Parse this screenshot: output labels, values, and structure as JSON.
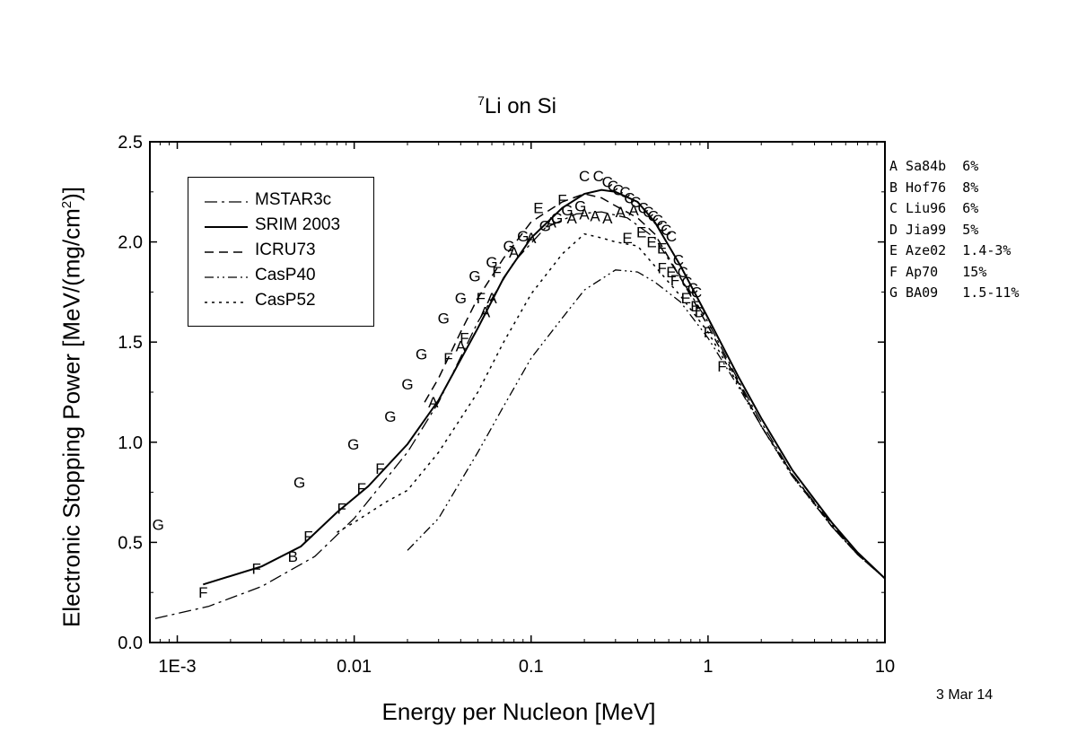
{
  "title": {
    "prefix": "7",
    "text": "Li on Si"
  },
  "xlabel": "Energy per Nucleon [MeV]",
  "ylabel": {
    "main": "Electronic Stopping Power [MeV/(mg/cm",
    "sup": "2",
    "end": ")]"
  },
  "date": "3 Mar 14",
  "legend": [
    {
      "label": "MSTAR3c",
      "dash": "14,5,3,5"
    },
    {
      "label": "SRIM 2003",
      "dash": ""
    },
    {
      "label": "ICRU73",
      "dash": "10,6"
    },
    {
      "label": "CasP40",
      "dash": "10,4,2,4,2,4"
    },
    {
      "label": "CasP52",
      "dash": "3,5"
    }
  ],
  "sources": [
    "A Sa84b  6%",
    "B Hof76  8%",
    "C Liu96  6%",
    "D Jia99  5%",
    "E Aze02  1.4-3%",
    "F Ap70   15%",
    "G BA09   1.5-11%"
  ],
  "chart_data": {
    "type": "line",
    "xscale": "log",
    "xlim": [
      0.0007,
      10
    ],
    "ylim": [
      0,
      2.5
    ],
    "xticks": [
      {
        "v": 0.001,
        "label": "1E-3"
      },
      {
        "v": 0.01,
        "label": "0.01"
      },
      {
        "v": 0.1,
        "label": "0.1"
      },
      {
        "v": 1,
        "label": "1"
      },
      {
        "v": 10,
        "label": "10"
      }
    ],
    "yticks": [
      {
        "v": 0.0,
        "label": "0.0"
      },
      {
        "v": 0.5,
        "label": "0.5"
      },
      {
        "v": 1.0,
        "label": "1.0"
      },
      {
        "v": 1.5,
        "label": "1.5"
      },
      {
        "v": 2.0,
        "label": "2.0"
      },
      {
        "v": 2.5,
        "label": "2.5"
      }
    ],
    "series": [
      {
        "name": "MSTAR3c",
        "dash": "14,5,3,5",
        "width": 1.3,
        "points": [
          [
            0.00075,
            0.12
          ],
          [
            0.0015,
            0.18
          ],
          [
            0.003,
            0.28
          ],
          [
            0.006,
            0.43
          ],
          [
            0.01,
            0.62
          ],
          [
            0.02,
            0.95
          ],
          [
            0.03,
            1.2
          ],
          [
            0.05,
            1.6
          ],
          [
            0.08,
            1.9
          ],
          [
            0.12,
            2.07
          ],
          [
            0.18,
            2.14
          ],
          [
            0.25,
            2.15
          ],
          [
            0.35,
            2.12
          ],
          [
            0.5,
            2.02
          ],
          [
            0.7,
            1.82
          ],
          [
            1.0,
            1.6
          ],
          [
            1.5,
            1.3
          ],
          [
            2,
            1.1
          ],
          [
            3,
            0.84
          ],
          [
            5,
            0.59
          ],
          [
            7,
            0.44
          ],
          [
            10,
            0.32
          ]
        ]
      },
      {
        "name": "SRIM 2003",
        "dash": "",
        "width": 2,
        "points": [
          [
            0.0014,
            0.29
          ],
          [
            0.003,
            0.38
          ],
          [
            0.005,
            0.48
          ],
          [
            0.008,
            0.65
          ],
          [
            0.012,
            0.78
          ],
          [
            0.02,
            0.99
          ],
          [
            0.03,
            1.21
          ],
          [
            0.05,
            1.57
          ],
          [
            0.07,
            1.82
          ],
          [
            0.1,
            2.02
          ],
          [
            0.15,
            2.17
          ],
          [
            0.2,
            2.24
          ],
          [
            0.25,
            2.26
          ],
          [
            0.3,
            2.25
          ],
          [
            0.4,
            2.2
          ],
          [
            0.5,
            2.1
          ],
          [
            0.7,
            1.88
          ],
          [
            1.0,
            1.62
          ],
          [
            1.5,
            1.32
          ],
          [
            2,
            1.12
          ],
          [
            3,
            0.86
          ],
          [
            5,
            0.6
          ],
          [
            7,
            0.45
          ],
          [
            10,
            0.32
          ]
        ]
      },
      {
        "name": "ICRU73",
        "dash": "10,6",
        "width": 1.5,
        "points": [
          [
            0.025,
            1.2
          ],
          [
            0.03,
            1.32
          ],
          [
            0.04,
            1.55
          ],
          [
            0.05,
            1.72
          ],
          [
            0.07,
            1.92
          ],
          [
            0.1,
            2.1
          ],
          [
            0.15,
            2.2
          ],
          [
            0.2,
            2.24
          ],
          [
            0.25,
            2.22
          ],
          [
            0.3,
            2.18
          ],
          [
            0.4,
            2.12
          ],
          [
            0.5,
            2.04
          ],
          [
            0.7,
            1.82
          ],
          [
            1.0,
            1.58
          ],
          [
            1.5,
            1.29
          ],
          [
            2,
            1.08
          ],
          [
            3,
            0.84
          ],
          [
            5,
            0.58
          ],
          [
            7,
            0.44
          ],
          [
            10,
            0.32
          ]
        ]
      },
      {
        "name": "CasP40",
        "dash": "10,4,2,4,2,4",
        "width": 1.3,
        "points": [
          [
            0.02,
            0.46
          ],
          [
            0.03,
            0.62
          ],
          [
            0.05,
            0.95
          ],
          [
            0.07,
            1.18
          ],
          [
            0.1,
            1.42
          ],
          [
            0.15,
            1.62
          ],
          [
            0.2,
            1.76
          ],
          [
            0.3,
            1.86
          ],
          [
            0.4,
            1.85
          ],
          [
            0.5,
            1.8
          ],
          [
            0.7,
            1.7
          ],
          [
            1.0,
            1.52
          ],
          [
            1.5,
            1.27
          ],
          [
            2,
            1.08
          ],
          [
            3,
            0.83
          ],
          [
            5,
            0.58
          ],
          [
            7,
            0.44
          ],
          [
            10,
            0.32
          ]
        ]
      },
      {
        "name": "CasP52",
        "dash": "3,5",
        "width": 1.5,
        "points": [
          [
            0.008,
            0.55
          ],
          [
            0.01,
            0.6
          ],
          [
            0.015,
            0.7
          ],
          [
            0.02,
            0.76
          ],
          [
            0.03,
            0.95
          ],
          [
            0.05,
            1.25
          ],
          [
            0.07,
            1.5
          ],
          [
            0.1,
            1.74
          ],
          [
            0.15,
            1.94
          ],
          [
            0.2,
            2.04
          ],
          [
            0.25,
            2.02
          ],
          [
            0.3,
            2.0
          ],
          [
            0.4,
            1.98
          ],
          [
            0.5,
            1.88
          ],
          [
            0.7,
            1.73
          ],
          [
            1.0,
            1.55
          ],
          [
            1.5,
            1.28
          ],
          [
            2,
            1.08
          ],
          [
            3,
            0.83
          ],
          [
            5,
            0.58
          ],
          [
            7,
            0.44
          ],
          [
            10,
            0.32
          ]
        ]
      }
    ],
    "markers": [
      {
        "source": "A",
        "points": [
          [
            0.028,
            1.2
          ],
          [
            0.04,
            1.48
          ],
          [
            0.055,
            1.65
          ],
          [
            0.06,
            1.72
          ],
          [
            0.08,
            1.95
          ],
          [
            0.1,
            2.02
          ],
          [
            0.13,
            2.1
          ],
          [
            0.17,
            2.12
          ],
          [
            0.2,
            2.14
          ],
          [
            0.23,
            2.13
          ],
          [
            0.27,
            2.12
          ],
          [
            0.32,
            2.15
          ],
          [
            0.38,
            2.16
          ]
        ]
      },
      {
        "source": "B",
        "points": [
          [
            0.0045,
            0.43
          ]
        ]
      },
      {
        "source": "C",
        "points": [
          [
            0.2,
            2.33
          ],
          [
            0.24,
            2.33
          ],
          [
            0.27,
            2.3
          ],
          [
            0.29,
            2.28
          ],
          [
            0.31,
            2.26
          ],
          [
            0.34,
            2.25
          ],
          [
            0.36,
            2.22
          ],
          [
            0.39,
            2.2
          ],
          [
            0.43,
            2.17
          ],
          [
            0.46,
            2.15
          ],
          [
            0.49,
            2.13
          ],
          [
            0.52,
            2.11
          ],
          [
            0.55,
            2.08
          ],
          [
            0.58,
            2.06
          ],
          [
            0.62,
            2.03
          ],
          [
            0.68,
            1.91
          ],
          [
            0.72,
            1.85
          ],
          [
            0.76,
            1.8
          ],
          [
            0.82,
            1.77
          ],
          [
            0.86,
            1.75
          ]
        ]
      },
      {
        "source": "D",
        "points": [
          [
            0.9,
            1.65
          ]
        ]
      },
      {
        "source": "E",
        "points": [
          [
            0.11,
            2.17
          ],
          [
            0.35,
            2.02
          ],
          [
            0.42,
            2.05
          ],
          [
            0.48,
            2.0
          ],
          [
            0.55,
            1.97
          ],
          [
            0.62,
            1.85
          ],
          [
            0.75,
            1.72
          ],
          [
            0.85,
            1.68
          ]
        ]
      },
      {
        "source": "F",
        "points": [
          [
            0.0014,
            0.25
          ],
          [
            0.0028,
            0.37
          ],
          [
            0.0055,
            0.53
          ],
          [
            0.0085,
            0.67
          ],
          [
            0.011,
            0.77
          ],
          [
            0.014,
            0.87
          ],
          [
            0.034,
            1.42
          ],
          [
            0.042,
            1.52
          ],
          [
            0.052,
            1.72
          ],
          [
            0.064,
            1.85
          ],
          [
            0.15,
            2.21
          ],
          [
            0.55,
            1.87
          ],
          [
            0.65,
            1.81
          ],
          [
            1.0,
            1.55
          ],
          [
            1.2,
            1.38
          ]
        ]
      },
      {
        "source": "G",
        "points": [
          [
            0.00078,
            0.59
          ],
          [
            0.0049,
            0.8
          ],
          [
            0.0099,
            0.99
          ],
          [
            0.016,
            1.13
          ],
          [
            0.02,
            1.29
          ],
          [
            0.024,
            1.44
          ],
          [
            0.032,
            1.62
          ],
          [
            0.04,
            1.72
          ],
          [
            0.048,
            1.83
          ],
          [
            0.06,
            1.9
          ],
          [
            0.075,
            1.98
          ],
          [
            0.09,
            2.03
          ],
          [
            0.12,
            2.08
          ],
          [
            0.14,
            2.12
          ],
          [
            0.16,
            2.16
          ],
          [
            0.19,
            2.18
          ]
        ]
      }
    ]
  }
}
